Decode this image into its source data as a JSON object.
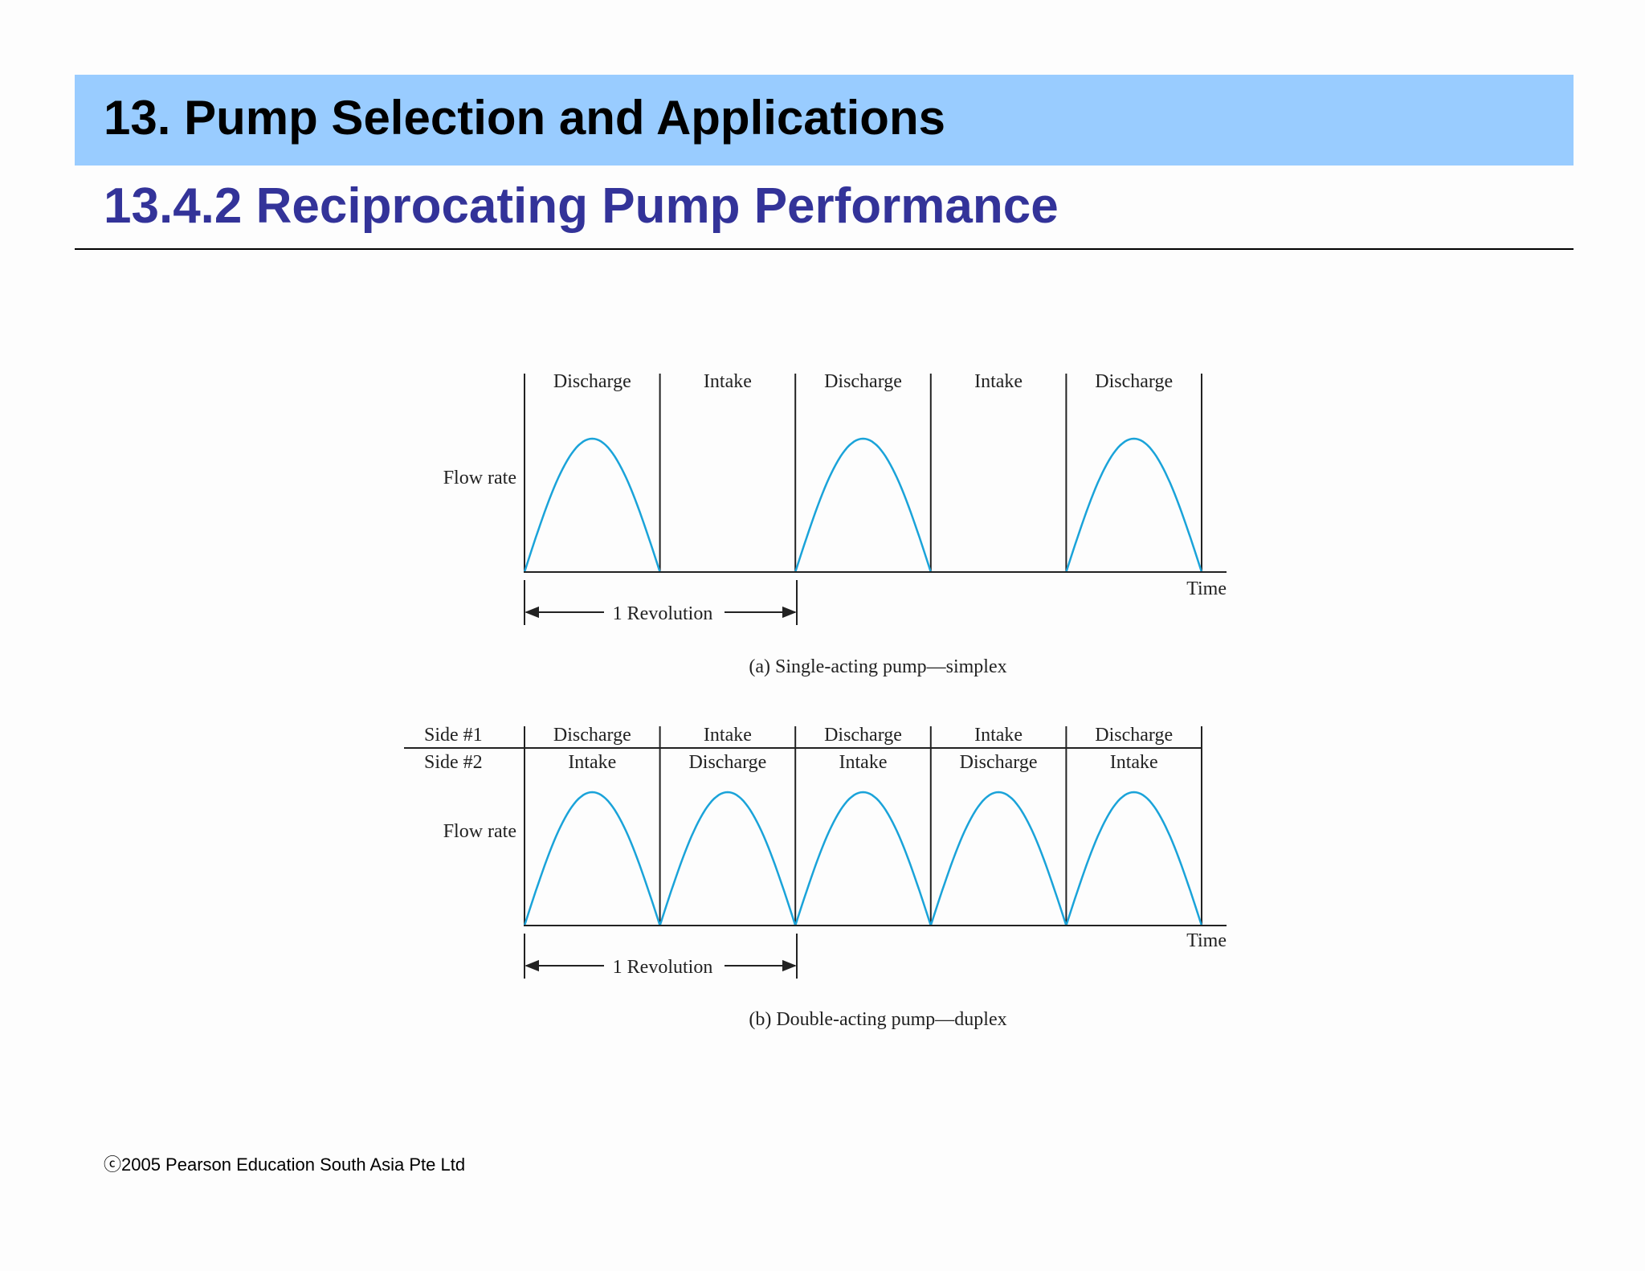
{
  "slide": {
    "title": "13. Pump Selection and Applications",
    "subtitle": "13.4.2 Reciprocating Pump Performance",
    "footer": "ⓒ2005 Pearson Education South Asia Pte Ltd"
  },
  "colors": {
    "title_bar": "#99ccff",
    "subtitle": "#333399",
    "curve": "#1aa3d9"
  },
  "diagram_a": {
    "labels": [
      "Discharge",
      "Intake",
      "Discharge",
      "Intake",
      "Discharge"
    ],
    "flow_segments": [
      true,
      false,
      true,
      false,
      true
    ],
    "y_label": "Flow rate",
    "x_label": "Time",
    "revolution_label": "1 Revolution",
    "caption": "(a) Single-acting pump—simplex"
  },
  "diagram_b": {
    "side1_label": "Side #1",
    "side2_label": "Side #2",
    "side1": [
      "Discharge",
      "Intake",
      "Discharge",
      "Intake",
      "Discharge"
    ],
    "side2": [
      "Intake",
      "Discharge",
      "Intake",
      "Discharge",
      "Intake"
    ],
    "flow_segments": [
      true,
      true,
      true,
      true,
      true
    ],
    "y_label": "Flow rate",
    "x_label": "Time",
    "revolution_label": "1 Revolution",
    "caption": "(b) Double-acting pump—duplex"
  }
}
